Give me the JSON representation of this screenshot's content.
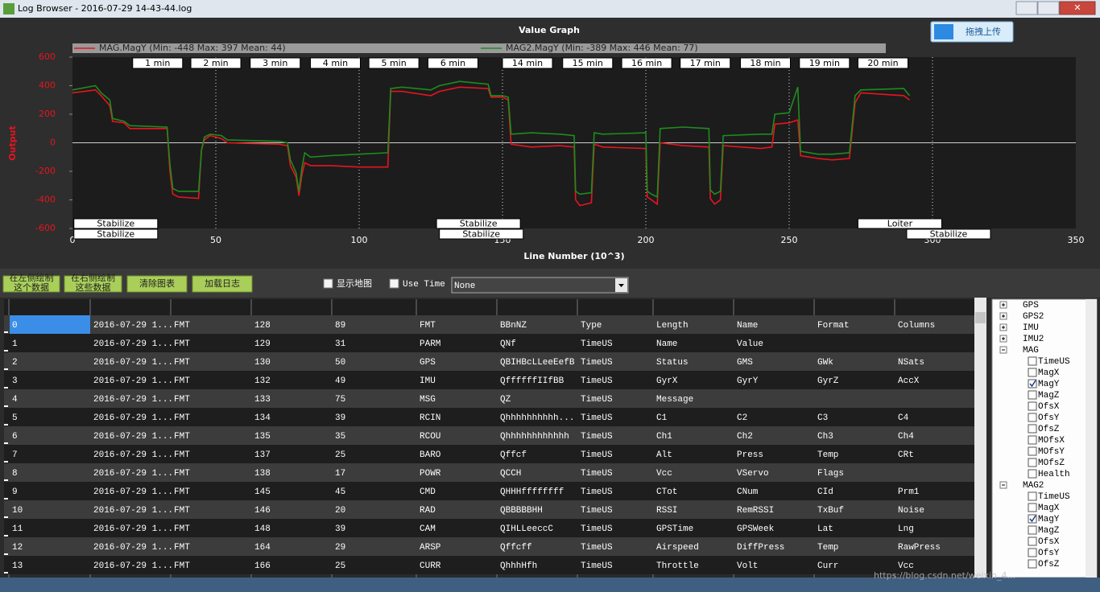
{
  "window": {
    "title": "Log Browser - 2016-07-29 14-43-44.log"
  },
  "chart_data": {
    "type": "line",
    "title": "Value Graph",
    "upload_button": "拖拽上传",
    "y_label": "Output",
    "x_label": "Line Number (10^3)",
    "xlim": [
      0,
      350
    ],
    "xticks": [
      0,
      50,
      100,
      150,
      200,
      250,
      300,
      350
    ],
    "ylim": [
      -600,
      600
    ],
    "yticks": [
      -600,
      -400,
      -200,
      0,
      200,
      400,
      600
    ],
    "grid": true,
    "series": [
      {
        "name": "MAG.MagY (Min: -448 Max: 397 Mean: 44)",
        "color": "#e8141e",
        "x": [
          0,
          8,
          10,
          13,
          14,
          18,
          20,
          33,
          34,
          35,
          37,
          44,
          45,
          46,
          48,
          52,
          54,
          72,
          75,
          76,
          78,
          79,
          80,
          81,
          83,
          90,
          100,
          110,
          111,
          115,
          125,
          128,
          135,
          145,
          146,
          150,
          152,
          153,
          160,
          170,
          175,
          175.5,
          177,
          181,
          182,
          185,
          200,
          200.5,
          202,
          204,
          205,
          213,
          222,
          222.5,
          224,
          226,
          227,
          240,
          244,
          245,
          250,
          253,
          254,
          260,
          265,
          271,
          273,
          275,
          290,
          292
        ],
        "values": [
          350,
          370,
          330,
          260,
          150,
          140,
          100,
          100,
          -200,
          -360,
          -380,
          -390,
          -50,
          20,
          50,
          30,
          0,
          -10,
          -20,
          -160,
          -240,
          -370,
          -230,
          -140,
          -160,
          -160,
          -170,
          -170,
          360,
          360,
          330,
          360,
          390,
          380,
          320,
          320,
          300,
          -10,
          -30,
          -20,
          -30,
          -400,
          -440,
          -420,
          -10,
          -30,
          -40,
          -380,
          -400,
          -430,
          0,
          -20,
          -30,
          -390,
          -430,
          -400,
          -20,
          -40,
          -30,
          130,
          140,
          160,
          -90,
          -110,
          -120,
          -110,
          280,
          350,
          330,
          300
        ]
      },
      {
        "name": "MAG2.MagY (Min: -389 Max: 446 Mean: 77)",
        "color": "#1e8c1e",
        "x": [
          0,
          8,
          10,
          13,
          14,
          18,
          20,
          33,
          34,
          35,
          37,
          44,
          45,
          46,
          48,
          52,
          54,
          72,
          75,
          76,
          78,
          79,
          80,
          81,
          83,
          90,
          100,
          110,
          111,
          115,
          125,
          128,
          135,
          145,
          146,
          150,
          152,
          153,
          160,
          170,
          175,
          175.5,
          177,
          181,
          182,
          185,
          200,
          200.5,
          202,
          204,
          205,
          213,
          222,
          222.5,
          224,
          226,
          227,
          240,
          244,
          245,
          250,
          253,
          254,
          260,
          265,
          271,
          273,
          275,
          290,
          292
        ],
        "values": [
          370,
          400,
          350,
          300,
          170,
          150,
          120,
          110,
          -150,
          -320,
          -340,
          -340,
          -50,
          40,
          60,
          50,
          20,
          10,
          0,
          -120,
          -210,
          -340,
          -180,
          -70,
          -100,
          -90,
          -80,
          -70,
          380,
          390,
          370,
          400,
          430,
          410,
          330,
          330,
          320,
          60,
          70,
          60,
          50,
          -340,
          -360,
          -350,
          70,
          60,
          70,
          -340,
          -360,
          -380,
          100,
          110,
          100,
          -330,
          -360,
          -340,
          50,
          60,
          60,
          200,
          210,
          390,
          -60,
          -80,
          -80,
          -70,
          330,
          370,
          380,
          330
        ]
      }
    ],
    "minute_markers": [
      {
        "label": "1 min",
        "x": 21
      },
      {
        "label": "2 min",
        "x": 41.3
      },
      {
        "label": "3 min",
        "x": 62
      },
      {
        "label": "4 min",
        "x": 83
      },
      {
        "label": "5 min",
        "x": 103.4
      },
      {
        "label": "6 min",
        "x": 124
      },
      {
        "label": "14 min",
        "x": 150
      },
      {
        "label": "15 min",
        "x": 171
      },
      {
        "label": "16 min",
        "x": 191.6
      },
      {
        "label": "17 min",
        "x": 212
      },
      {
        "label": "18 min",
        "x": 233
      },
      {
        "label": "19 min",
        "x": 253.6
      },
      {
        "label": "20 min",
        "x": 274
      }
    ],
    "modes": [
      [
        {
          "label": "Stabilize",
          "x": 0.5
        },
        {
          "label": "Stabilize",
          "x": 127
        },
        {
          "label": "Loiter",
          "x": 274
        }
      ],
      [
        {
          "label": "Stabilize",
          "x": 0.5
        },
        {
          "label": "Stabilize",
          "x": 128
        },
        {
          "label": "Stabilize",
          "x": 291
        }
      ]
    ]
  },
  "controls": {
    "buttons": [
      [
        "在左侧绘制",
        "这个数据"
      ],
      [
        "在右侧绘制",
        "这些数据"
      ],
      [
        "清除图表"
      ],
      [
        "加载日志"
      ]
    ],
    "checkboxes": [
      {
        "label": "显示地图",
        "checked": false
      },
      {
        "label": "Use Time",
        "checked": false
      }
    ],
    "dropdown": "None"
  },
  "table": {
    "rows": [
      [
        "0",
        "2016-07-29 1...",
        "FMT",
        "128",
        "89",
        "FMT",
        "BBnNZ",
        "Type",
        "Length",
        "Name",
        "Format",
        "Columns"
      ],
      [
        "1",
        "2016-07-29 1...",
        "FMT",
        "129",
        "31",
        "PARM",
        "QNf",
        "TimeUS",
        "Name",
        "Value",
        null,
        null
      ],
      [
        "2",
        "2016-07-29 1...",
        "FMT",
        "130",
        "50",
        "GPS",
        "QBIHBcLLeeEefB",
        "TimeUS",
        "Status",
        "GMS",
        "GWk",
        "NSats"
      ],
      [
        "3",
        "2016-07-29 1...",
        "FMT",
        "132",
        "49",
        "IMU",
        "QffffffIIfBB",
        "TimeUS",
        "GyrX",
        "GyrY",
        "GyrZ",
        "AccX"
      ],
      [
        "4",
        "2016-07-29 1...",
        "FMT",
        "133",
        "75",
        "MSG",
        "QZ",
        "TimeUS",
        "Message",
        null,
        null,
        null
      ],
      [
        "5",
        "2016-07-29 1...",
        "FMT",
        "134",
        "39",
        "RCIN",
        "Qhhhhhhhhhh...",
        "TimeUS",
        "C1",
        "C2",
        "C3",
        "C4"
      ],
      [
        "6",
        "2016-07-29 1...",
        "FMT",
        "135",
        "35",
        "RCOU",
        "Qhhhhhhhhhhhh",
        "TimeUS",
        "Ch1",
        "Ch2",
        "Ch3",
        "Ch4"
      ],
      [
        "7",
        "2016-07-29 1...",
        "FMT",
        "137",
        "25",
        "BARO",
        "Qffcf",
        "TimeUS",
        "Alt",
        "Press",
        "Temp",
        "CRt"
      ],
      [
        "8",
        "2016-07-29 1...",
        "FMT",
        "138",
        "17",
        "POWR",
        "QCCH",
        "TimeUS",
        "Vcc",
        "VServo",
        "Flags",
        null
      ],
      [
        "9",
        "2016-07-29 1...",
        "FMT",
        "145",
        "45",
        "CMD",
        "QHHHffffffff",
        "TimeUS",
        "CTot",
        "CNum",
        "CId",
        "Prm1"
      ],
      [
        "10",
        "2016-07-29 1...",
        "FMT",
        "146",
        "20",
        "RAD",
        "QBBBBBHH",
        "TimeUS",
        "RSSI",
        "RemRSSI",
        "TxBuf",
        "Noise"
      ],
      [
        "11",
        "2016-07-29 1...",
        "FMT",
        "148",
        "39",
        "CAM",
        "QIHLLeeccC",
        "TimeUS",
        "GPSTime",
        "GPSWeek",
        "Lat",
        "Lng"
      ],
      [
        "12",
        "2016-07-29 1...",
        "FMT",
        "164",
        "29",
        "ARSP",
        "Qffcff",
        "TimeUS",
        "Airspeed",
        "DiffPress",
        "Temp",
        "RawPress"
      ],
      [
        "13",
        "2016-07-29 1...",
        "FMT",
        "166",
        "25",
        "CURR",
        "QhhhHfh",
        "TimeUS",
        "Throttle",
        "Volt",
        "Curr",
        "Vcc"
      ]
    ]
  },
  "tree": [
    {
      "label": "GPS",
      "expanded": false
    },
    {
      "label": "GPS2",
      "expanded": false
    },
    {
      "label": "IMU",
      "expanded": false
    },
    {
      "label": "IMU2",
      "expanded": false
    },
    {
      "label": "MAG",
      "expanded": true,
      "children": [
        {
          "label": "TimeUS",
          "checked": false
        },
        {
          "label": "MagX",
          "checked": false
        },
        {
          "label": "MagY",
          "checked": true
        },
        {
          "label": "MagZ",
          "checked": false
        },
        {
          "label": "OfsX",
          "checked": false
        },
        {
          "label": "OfsY",
          "checked": false
        },
        {
          "label": "OfsZ",
          "checked": false
        },
        {
          "label": "MOfsX",
          "checked": false
        },
        {
          "label": "MOfsY",
          "checked": false
        },
        {
          "label": "MOfsZ",
          "checked": false
        },
        {
          "label": "Health",
          "checked": false
        }
      ]
    },
    {
      "label": "MAG2",
      "expanded": true,
      "children": [
        {
          "label": "TimeUS",
          "checked": false
        },
        {
          "label": "MagX",
          "checked": false
        },
        {
          "label": "MagY",
          "checked": true
        },
        {
          "label": "MagZ",
          "checked": false
        },
        {
          "label": "OfsX",
          "checked": false
        },
        {
          "label": "OfsY",
          "checked": false
        },
        {
          "label": "OfsZ",
          "checked": false
        }
      ]
    }
  ],
  "watermark": "https://blog.csdn.net/weixin_4..."
}
